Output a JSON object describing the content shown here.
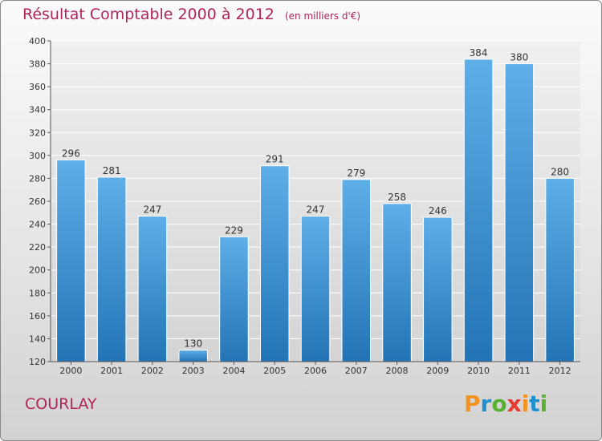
{
  "title": "Résultat Comptable 2000 à 2012",
  "subtitle": "(en milliers d'€)",
  "city": "COURLAY",
  "logo": {
    "text": "Proxiti",
    "colors": [
      "#f39322",
      "#1f8fcf",
      "#59b134",
      "#e63a2e",
      "#f39322",
      "#1f8fcf",
      "#59b134"
    ]
  },
  "colors": {
    "bar_top": "#5eaee8",
    "bar_bottom": "#2374b6",
    "title": "#b0245a",
    "grid": "#ffffff"
  },
  "chart_data": {
    "type": "bar",
    "categories": [
      "2000",
      "2001",
      "2002",
      "2003",
      "2004",
      "2005",
      "2006",
      "2007",
      "2008",
      "2009",
      "2010",
      "2011",
      "2012"
    ],
    "values": [
      296,
      281,
      247,
      130,
      229,
      291,
      247,
      279,
      258,
      246,
      384,
      380,
      280
    ],
    "ylim": [
      120,
      400
    ],
    "yticks": [
      120,
      140,
      160,
      180,
      200,
      220,
      240,
      260,
      280,
      300,
      320,
      340,
      360,
      380,
      400
    ],
    "grid": true,
    "title": "Résultat Comptable 2000 à 2012",
    "xlabel": "",
    "ylabel": ""
  }
}
